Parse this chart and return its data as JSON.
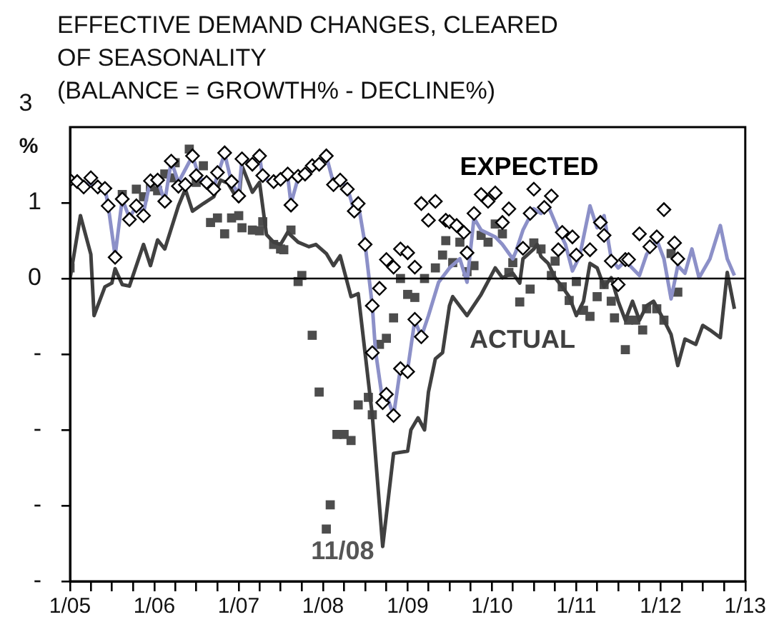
{
  "chart_data": {
    "type": "line",
    "title": "EFFECTIVE DEMAND CHANGES, CLEARED\nOF SEASONALITY\n(BALANCE = GROWTH% - DECLINE%)",
    "ylabel": "%",
    "annotations": [
      "3",
      {
        "text": "11/08",
        "x": "2008-09-15",
        "y": -3.54
      }
    ],
    "xlim": [
      "2005-01",
      "2013-01"
    ],
    "ylim": [
      -4,
      2
    ],
    "xticks": [
      {
        "value": "2005-01",
        "label": "1/05"
      },
      {
        "value": "2005-04",
        "label": null
      },
      {
        "value": "2005-07",
        "label": null
      },
      {
        "value": "2005-10",
        "label": null
      },
      {
        "value": "2006-01",
        "label": "1/06"
      },
      {
        "value": "2006-04",
        "label": null
      },
      {
        "value": "2006-07",
        "label": null
      },
      {
        "value": "2006-10",
        "label": null
      },
      {
        "value": "2007-01",
        "label": "1/07"
      },
      {
        "value": "2007-04",
        "label": null
      },
      {
        "value": "2007-07",
        "label": null
      },
      {
        "value": "2007-10",
        "label": null
      },
      {
        "value": "2008-01",
        "label": "1/08"
      },
      {
        "value": "2008-04",
        "label": null
      },
      {
        "value": "2008-07",
        "label": null
      },
      {
        "value": "2008-10",
        "label": null
      },
      {
        "value": "2009-01",
        "label": "1/09"
      },
      {
        "value": "2009-04",
        "label": null
      },
      {
        "value": "2009-07",
        "label": null
      },
      {
        "value": "2009-10",
        "label": null
      },
      {
        "value": "2010-01",
        "label": "1/10"
      },
      {
        "value": "2010-04",
        "label": null
      },
      {
        "value": "2010-07",
        "label": null
      },
      {
        "value": "2010-10",
        "label": null
      },
      {
        "value": "2011-01",
        "label": "1/11"
      },
      {
        "value": "2011-04",
        "label": null
      },
      {
        "value": "2011-07",
        "label": null
      },
      {
        "value": "2011-10",
        "label": null
      },
      {
        "value": "2012-01",
        "label": "1/12"
      },
      {
        "value": "2012-04",
        "label": null
      },
      {
        "value": "2012-07",
        "label": null
      },
      {
        "value": "2012-10",
        "label": null
      },
      {
        "value": "2013-01",
        "label": "1/13"
      }
    ],
    "yticks": [
      {
        "value": -4,
        "label": "-"
      },
      {
        "value": -3,
        "label": "-"
      },
      {
        "value": -2,
        "label": "-"
      },
      {
        "value": -1,
        "label": "-"
      },
      0,
      1
    ],
    "ref_lines": [
      {
        "axis": "y",
        "value": 0,
        "color": "#000000"
      }
    ],
    "series": [
      {
        "type": "scatter",
        "name": "EXPECTED",
        "marker": "diamond",
        "color": "#000000",
        "x": [
          "2005-01-01",
          "2005-02-01",
          "2005-03-01",
          "2005-04-01",
          "2005-05-01",
          "2005-06-01",
          "2005-06-15",
          "2005-07-15",
          "2005-08-15",
          "2005-09-15",
          "2005-10-15",
          "2005-11-15",
          "2005-12-15",
          "2006-01-15",
          "2006-02-15",
          "2006-03-15",
          "2006-04-15",
          "2006-05-15",
          "2006-06-15",
          "2006-07-01",
          "2006-08-15",
          "2006-09-15",
          "2006-10-01",
          "2006-11-01",
          "2006-12-01",
          "2007-01-01",
          "2007-01-15",
          "2007-03-01",
          "2007-04-01",
          "2007-04-15",
          "2007-06-01",
          "2007-07-01",
          "2007-08-01",
          "2007-08-15",
          "2007-09-15",
          "2007-10-15",
          "2007-11-15",
          "2007-12-15",
          "2008-01-15",
          "2008-02-15",
          "2008-03-15",
          "2008-04-15",
          "2008-05-15",
          "2008-06-01",
          "2008-07-01",
          "2008-08-01",
          "2008-08-01",
          "2008-09-01",
          "2008-09-15",
          "2008-10-01",
          "2008-10-01",
          "2008-11-01",
          "2008-11-01",
          "2008-12-01",
          "2008-12-01",
          "2009-01-01",
          "2009-01-01",
          "2009-02-01",
          "2009-02-01",
          "2009-03-01",
          "2009-03-01",
          "2009-04-01",
          "2009-05-01",
          "2009-06-15",
          "2009-07-01",
          "2009-08-01",
          "2009-09-01",
          "2009-09-15",
          "2009-10-15",
          "2009-11-15",
          "2009-12-15",
          "2010-01-15",
          "2010-02-15",
          "2010-03-15",
          "2010-05-15",
          "2010-06-15",
          "2010-07-01",
          "2010-08-15",
          "2010-09-15",
          "2010-10-15",
          "2010-11-01",
          "2010-12-15",
          "2011-01-01",
          "2011-03-01",
          "2011-04-15",
          "2011-05-01",
          "2011-06-01",
          "2011-07-01",
          "2011-08-01",
          "2011-08-15",
          "2011-10-01",
          "2011-11-15",
          "2011-12-15",
          "2012-01-15",
          "2012-03-01",
          "2012-03-15"
        ],
        "values": [
          1.3,
          1.28,
          1.21,
          1.33,
          1.21,
          1.19,
          0.96,
          0.28,
          1.05,
          0.78,
          0.96,
          0.83,
          1.29,
          1.3,
          1.02,
          1.55,
          1.22,
          1.24,
          1.62,
          1.36,
          1.27,
          1.18,
          1.4,
          1.66,
          1.28,
          1.09,
          1.58,
          1.51,
          1.62,
          1.36,
          1.28,
          1.31,
          1.38,
          0.97,
          1.35,
          1.38,
          1.49,
          1.51,
          1.62,
          1.24,
          1.3,
          1.18,
          0.89,
          0.99,
          0.45,
          -0.36,
          -0.98,
          -0.13,
          -1.64,
          0.25,
          -1.53,
          -1.81,
          0.15,
          0.39,
          -1.19,
          -1.23,
          0.34,
          -0.54,
          0.15,
          0.99,
          -0.77,
          0.77,
          1.02,
          0.77,
          0.75,
          0.7,
          0.61,
          0.34,
          0.86,
          1.11,
          1.02,
          1.13,
          0.74,
          0.92,
          0.4,
          0.86,
          1.18,
          0.94,
          1.09,
          0.38,
          0.61,
          0.55,
          0.31,
          0.38,
          0.74,
          0.57,
          0.23,
          -0.08,
          0.25,
          0.25,
          0.59,
          0.42,
          0.55,
          0.91,
          0.47,
          0.26
        ]
      },
      {
        "marker": "none",
        "color": "#8c90c8",
        "x": [
          "2005-01-01",
          "2005-03-01",
          "2005-06-01",
          "2005-06-15",
          "2005-07-15",
          "2005-08-15",
          "2005-09-15",
          "2005-10-15",
          "2005-11-15",
          "2005-12-15",
          "2006-01-15",
          "2006-02-15",
          "2006-03-15",
          "2006-04-15",
          "2006-06-15",
          "2006-07-15",
          "2006-08-15",
          "2006-09-15",
          "2006-10-01",
          "2006-11-01",
          "2006-12-01",
          "2007-01-01",
          "2007-01-15",
          "2007-03-01",
          "2007-04-01",
          "2007-04-15",
          "2007-06-01",
          "2007-07-01",
          "2007-08-01",
          "2007-08-15",
          "2007-09-15",
          "2007-10-15",
          "2007-11-15",
          "2007-12-15",
          "2008-01-15",
          "2008-02-15",
          "2008-03-15",
          "2008-04-15",
          "2008-05-15",
          "2008-06-01",
          "2008-07-01",
          "2008-08-01",
          "2008-08-15",
          "2008-09-15",
          "2008-10-01",
          "2008-11-01",
          "2008-12-01",
          "2009-01-01",
          "2009-02-01",
          "2009-03-01",
          "2009-04-01",
          "2009-05-15",
          "2009-07-01",
          "2009-08-15",
          "2009-09-15",
          "2009-10-15",
          "2009-11-15",
          "2010-01-15",
          "2010-02-15",
          "2010-04-01",
          "2010-04-15",
          "2010-05-15",
          "2010-07-01",
          "2010-08-01",
          "2010-09-01",
          "2010-10-15",
          "2010-11-15",
          "2010-12-15",
          "2011-01-15",
          "2011-03-01",
          "2011-04-01",
          "2011-05-01",
          "2011-06-01",
          "2011-07-01",
          "2011-08-01",
          "2011-10-01",
          "2011-11-01",
          "2011-12-15",
          "2012-01-15",
          "2012-02-15",
          "2012-03-15",
          "2012-04-15",
          "2012-05-15",
          "2012-06-15",
          "2012-08-01",
          "2012-09-15",
          "2012-10-15",
          "2012-11-15"
        ],
        "values": [
          1.3,
          1.26,
          1.2,
          0.96,
          0.3,
          1.05,
          0.8,
          0.96,
          0.87,
          1.3,
          1.3,
          1.02,
          1.55,
          1.27,
          1.62,
          1.33,
          1.27,
          1.2,
          1.36,
          1.65,
          1.27,
          1.11,
          1.58,
          1.52,
          1.62,
          1.33,
          1.27,
          1.3,
          1.35,
          0.99,
          1.33,
          1.36,
          1.45,
          1.48,
          1.62,
          1.26,
          1.3,
          1.2,
          0.89,
          0.99,
          0.45,
          -0.36,
          -0.96,
          -1.62,
          -1.53,
          -1.81,
          -1.18,
          -1.2,
          -0.55,
          -0.77,
          -0.49,
          -0.05,
          0.14,
          0.26,
          -0.05,
          0.8,
          0.64,
          0.55,
          0.45,
          0.26,
          0.36,
          0.64,
          0.92,
          0.86,
          0.96,
          0.64,
          0.45,
          0.1,
          0.29,
          0.96,
          0.67,
          0.83,
          0.26,
          0.14,
          0.23,
          0.04,
          0.32,
          0.51,
          0.26,
          -0.27,
          0.17,
          0.07,
          0.39,
          0.01,
          0.26,
          0.7,
          0.26,
          0.04
        ]
      },
      {
        "name": "ACTUAL",
        "marker": "none",
        "color": "#404040",
        "x": [
          "2005-01-01",
          "2005-02-15",
          "2005-04-01",
          "2005-04-15",
          "2005-06-01",
          "2005-07-01",
          "2005-07-15",
          "2005-08-15",
          "2005-09-15",
          "2005-11-15",
          "2005-12-15",
          "2006-01-15",
          "2006-02-15",
          "2006-04-15",
          "2006-05-15",
          "2006-06-15",
          "2006-08-01",
          "2006-09-15",
          "2006-10-15",
          "2006-11-15",
          "2007-01-01",
          "2007-01-15",
          "2007-03-01",
          "2007-04-01",
          "2007-05-01",
          "2007-06-01",
          "2007-07-01",
          "2007-08-01",
          "2007-09-15",
          "2007-11-01",
          "2007-12-01",
          "2008-01-15",
          "2008-02-15",
          "2008-03-15",
          "2008-05-01",
          "2008-06-01",
          "2008-07-01",
          "2008-08-01",
          "2008-09-15",
          "2008-11-01",
          "2009-01-01",
          "2009-01-15",
          "2009-02-15",
          "2009-03-15",
          "2009-04-01",
          "2009-05-01",
          "2009-06-01",
          "2009-07-01",
          "2009-07-15",
          "2009-09-15",
          "2009-11-15",
          "2010-01-15",
          "2010-02-15",
          "2010-04-01",
          "2010-05-01",
          "2010-05-15",
          "2010-07-01",
          "2010-07-15",
          "2010-08-01",
          "2010-09-01",
          "2010-10-01",
          "2010-11-01",
          "2010-12-01",
          "2011-01-01",
          "2011-02-01",
          "2011-03-01",
          "2011-04-01",
          "2011-05-01",
          "2011-06-01",
          "2011-07-01",
          "2011-08-01",
          "2011-09-01",
          "2011-10-01",
          "2011-11-01",
          "2011-12-01",
          "2012-01-15",
          "2012-02-15",
          "2012-03-15",
          "2012-04-15",
          "2012-06-01",
          "2012-07-01",
          "2012-08-01",
          "2012-09-15",
          "2012-10-15",
          "2012-11-15"
        ],
        "values": [
          0,
          0.83,
          0.32,
          -0.49,
          -0.11,
          -0.06,
          0.13,
          -0.08,
          -0.1,
          0.45,
          0.17,
          0.51,
          0.39,
          0.96,
          1.18,
          0.89,
          0.99,
          1.08,
          1.3,
          1.26,
          1.02,
          1.49,
          1.14,
          1.27,
          0.58,
          0.48,
          0.45,
          0.61,
          0.48,
          0.42,
          0.45,
          0.33,
          0.17,
          0.3,
          -0.24,
          -0.2,
          -0.99,
          -1.81,
          -3.54,
          -2.31,
          -2.28,
          -2.0,
          -1.84,
          -2.0,
          -1.5,
          -1.06,
          -0.98,
          -0.36,
          -0.24,
          -0.49,
          -0.21,
          0.14,
          0.01,
          0.07,
          -0.06,
          0.26,
          0.39,
          0.45,
          0.29,
          0.2,
          0.01,
          -0.11,
          -0.24,
          -0.49,
          -0.3,
          0.2,
          0.14,
          -0.11,
          0.01,
          -0.3,
          -0.55,
          -0.3,
          -0.55,
          -0.36,
          -0.3,
          -0.55,
          -0.74,
          -1.15,
          -0.8,
          -0.87,
          -0.62,
          -0.68,
          -0.78,
          0.08,
          -0.4
        ]
      },
      {
        "type": "scatter",
        "marker": "square",
        "color": "#4d4d4d",
        "x": [
          "2005-01-01",
          "2005-08-15",
          "2005-10-15",
          "2005-11-15",
          "2005-12-15",
          "2006-01-15",
          "2006-02-15",
          "2006-03-15",
          "2006-04-01",
          "2006-06-01",
          "2006-07-01",
          "2006-08-01",
          "2006-09-01",
          "2006-10-01",
          "2006-11-01",
          "2006-12-01",
          "2007-01-01",
          "2007-01-15",
          "2007-03-01",
          "2007-04-01",
          "2007-04-15",
          "2007-06-01",
          "2007-07-01",
          "2007-07-15",
          "2007-08-15",
          "2007-09-15",
          "2007-10-01",
          "2007-11-15",
          "2007-12-15",
          "2008-01-15",
          "2008-02-01",
          "2008-03-01",
          "2008-04-01",
          "2008-05-01",
          "2008-06-01",
          "2008-07-15",
          "2008-08-01",
          "2008-09-01",
          "2008-10-01",
          "2008-11-01",
          "2008-12-01",
          "2009-01-01",
          "2009-02-01",
          "2009-03-15",
          "2009-05-01",
          "2009-06-01",
          "2009-06-15",
          "2009-07-15",
          "2009-08-15",
          "2009-09-15",
          "2009-10-15",
          "2009-11-15",
          "2009-12-15",
          "2010-01-15",
          "2010-02-15",
          "2010-03-15",
          "2010-04-01",
          "2010-05-01",
          "2010-06-15",
          "2010-07-01",
          "2010-08-01",
          "2010-09-15",
          "2010-10-01",
          "2010-11-01",
          "2010-12-01",
          "2011-01-01",
          "2011-02-01",
          "2011-03-01",
          "2011-04-01",
          "2011-05-01",
          "2011-06-01",
          "2011-06-15",
          "2011-08-01",
          "2011-08-15",
          "2011-09-15",
          "2011-10-15",
          "2011-11-01",
          "2011-12-15",
          "2012-01-15",
          "2012-02-15",
          "2012-03-15"
        ],
        "values": [
          0.14,
          1.11,
          1.18,
          1.08,
          1.21,
          1.16,
          1.38,
          1.33,
          1.53,
          1.71,
          1.27,
          1.49,
          0.74,
          0.8,
          0.59,
          0.8,
          0.83,
          0.67,
          0.64,
          0.63,
          0.75,
          0.45,
          0.39,
          0.38,
          0.64,
          -0.04,
          0.04,
          -0.75,
          -1.5,
          -3.31,
          -2.99,
          -2.06,
          -2.06,
          -2.14,
          -1.67,
          -1.57,
          -1.8,
          -0.87,
          -0.79,
          -0.52,
          0.0,
          -0.21,
          -0.25,
          0.0,
          0.14,
          0.31,
          0.5,
          0.21,
          0.48,
          0.09,
          0.17,
          0.57,
          0.48,
          0.72,
          0.59,
          0.08,
          0.21,
          -0.31,
          -0.14,
          0.47,
          0.39,
          0.04,
          0.23,
          -0.11,
          -0.29,
          -0.04,
          -0.42,
          -0.5,
          -0.24,
          -0.08,
          -0.3,
          -0.52,
          -0.94,
          -0.55,
          -0.55,
          -0.68,
          -0.4,
          -0.4,
          -0.55,
          0.33,
          -0.18
        ]
      }
    ]
  }
}
